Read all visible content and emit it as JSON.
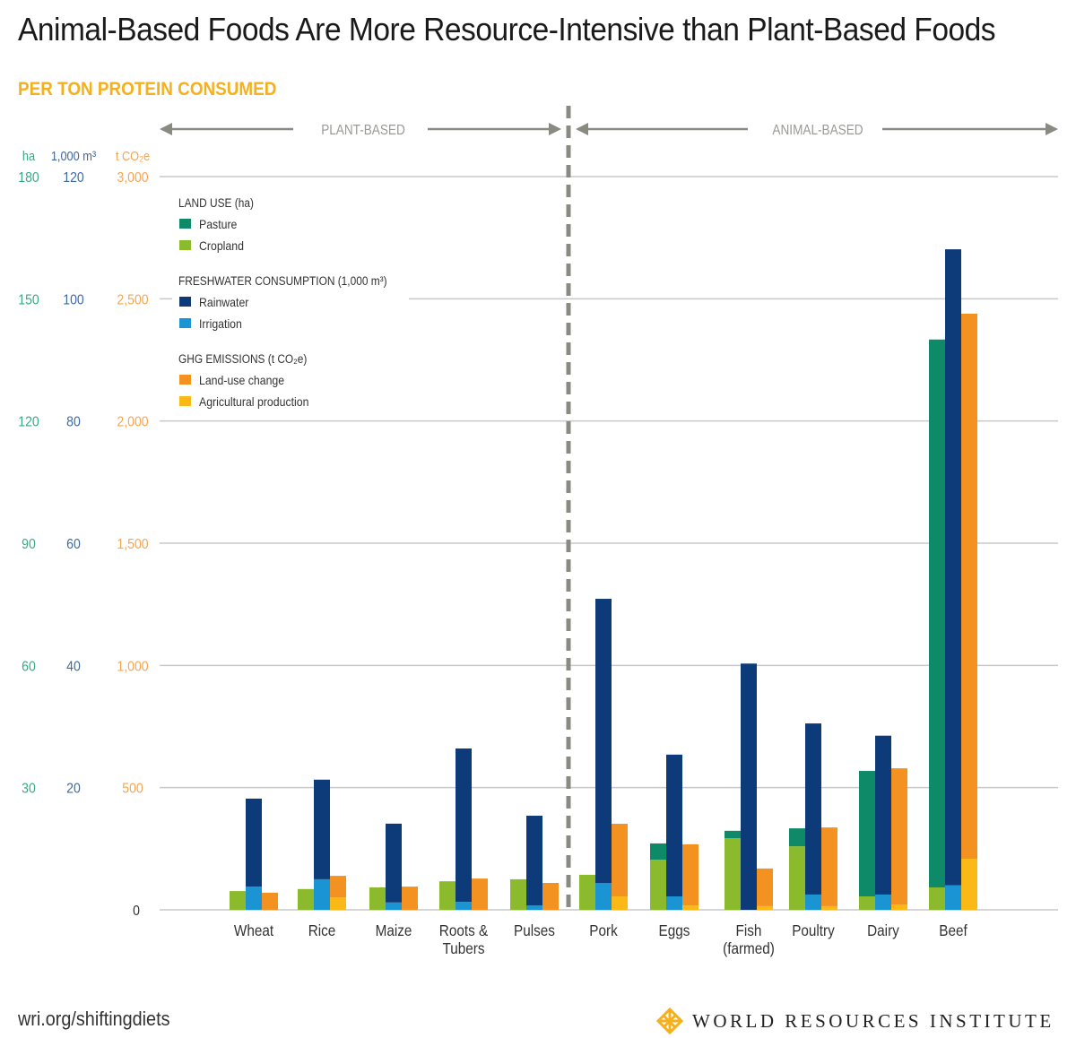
{
  "header": {
    "title": "Animal-Based Foods Are More Resource-Intensive than Plant-Based Foods",
    "subtitle": "PER TON PROTEIN CONSUMED"
  },
  "footer": {
    "source": "wri.org/shiftingdiets",
    "org_name": "WORLD RESOURCES INSTITUTE",
    "logo_icon": "wri-lattice-logo-icon"
  },
  "colors": {
    "pasture": "#0f8a68",
    "cropland": "#8cba2d",
    "rainwater": "#0d3b7a",
    "irrigation": "#1a94d2",
    "land_use_change": "#f39220",
    "agricultural_production": "#fbb917",
    "axis_ha": "#3aa886",
    "axis_water": "#3f6aa0",
    "axis_ghg": "#f5a652",
    "gridline": "#c8c8c8",
    "divider": "#8a8a82",
    "group_label": "#9a9a92"
  },
  "chart_data": {
    "type": "bar",
    "subtype": "grouped-stacked",
    "title": "Animal-Based Foods Are More Resource-Intensive than Plant-Based Foods",
    "subtitle": "PER TON PROTEIN CONSUMED",
    "groups": [
      {
        "label": "PLANT-BASED",
        "categories": [
          "Wheat",
          "Rice",
          "Maize",
          "Roots & Tubers",
          "Pulses"
        ]
      },
      {
        "label": "ANIMAL-BASED",
        "categories": [
          "Pork",
          "Eggs",
          "Fish (farmed)",
          "Poultry",
          "Dairy",
          "Beef"
        ]
      }
    ],
    "categories": [
      "Wheat",
      "Rice",
      "Maize",
      "Roots & Tubers",
      "Pulses",
      "Pork",
      "Eggs",
      "Fish (farmed)",
      "Poultry",
      "Dairy",
      "Beef"
    ],
    "category_labels": [
      [
        "Wheat"
      ],
      [
        "Rice"
      ],
      [
        "Maize"
      ],
      [
        "Roots &",
        "Tubers"
      ],
      [
        "Pulses"
      ],
      [
        "Pork"
      ],
      [
        "Eggs"
      ],
      [
        "Fish",
        "(farmed)"
      ],
      [
        "Poultry"
      ],
      [
        "Dairy"
      ],
      [
        "Beef"
      ]
    ],
    "axes": [
      {
        "key": "land",
        "unit": "ha",
        "ticks": [
          0,
          30,
          60,
          90,
          120,
          150,
          180
        ],
        "ylim": [
          0,
          180
        ]
      },
      {
        "key": "water",
        "unit": "1,000 m³",
        "ticks": [
          0,
          20,
          40,
          60,
          80,
          100,
          120
        ],
        "ylim": [
          0,
          120
        ]
      },
      {
        "key": "ghg",
        "unit": "t CO₂e",
        "ticks": [
          0,
          500,
          1000,
          1500,
          2000,
          2500,
          3000
        ],
        "tick_labels": [
          "0",
          "500",
          "1,000",
          "1,500",
          "2,000",
          "2,500",
          "3,000"
        ],
        "ylim": [
          0,
          3000
        ]
      }
    ],
    "grid": true,
    "legend_position": "top-left",
    "legend": [
      {
        "heading": "LAND USE (ha)",
        "items": [
          {
            "name": "Pasture",
            "key": "pasture"
          },
          {
            "name": "Cropland",
            "key": "cropland"
          }
        ]
      },
      {
        "heading": "FRESHWATER CONSUMPTION (1,000 m³)",
        "items": [
          {
            "name": "Rainwater",
            "key": "rainwater"
          },
          {
            "name": "Irrigation",
            "key": "irrigation"
          }
        ]
      },
      {
        "heading": "GHG EMISSIONS (t CO₂e)",
        "items": [
          {
            "name": "Land-use change",
            "key": "land_use_change"
          },
          {
            "name": "Agricultural production",
            "key": "agricultural_production"
          }
        ]
      }
    ],
    "stacks": [
      {
        "key": "land",
        "axis": "land",
        "series": [
          {
            "name": "Cropland",
            "key": "cropland",
            "values": [
              4.6,
              5.1,
              5.5,
              7.0,
              7.5,
              8.6,
              12.3,
              17.6,
              15.6,
              3.3,
              5.5
            ]
          },
          {
            "name": "Pasture",
            "key": "pasture",
            "values": [
              0,
              0,
              0,
              0,
              0,
              0,
              4.0,
              1.8,
              4.4,
              30.8,
              134.5
            ]
          }
        ]
      },
      {
        "key": "water",
        "axis": "water",
        "series": [
          {
            "name": "Irrigation",
            "key": "irrigation",
            "values": [
              3.8,
              5.0,
              1.2,
              1.3,
              0.7,
              4.4,
              2.2,
              0,
              2.5,
              2.5,
              4.0
            ]
          },
          {
            "name": "Rainwater",
            "key": "rainwater",
            "values": [
              14.4,
              16.3,
              12.9,
              25.1,
              14.7,
              46.5,
              23.2,
              40.3,
              28.0,
              26.0,
              104.1
            ]
          }
        ]
      },
      {
        "key": "ghg",
        "axis": "ghg",
        "series": [
          {
            "name": "Agricultural production",
            "key": "agricultural_production",
            "values": [
              0,
              51,
              0,
              0,
              0,
              55,
              18,
              15,
              15,
              22,
              209
            ]
          },
          {
            "name": "Land-use change",
            "key": "land_use_change",
            "values": [
              70,
              88,
              95,
              128,
              110,
              297,
              250,
              154,
              322,
              557,
              2230
            ]
          }
        ]
      }
    ]
  }
}
